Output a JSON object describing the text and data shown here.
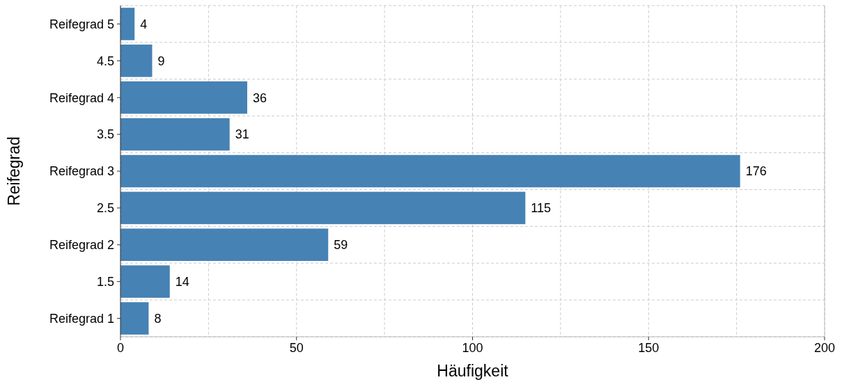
{
  "chart_data": {
    "type": "bar",
    "orientation": "horizontal",
    "xlabel": "Häufigkeit",
    "ylabel": "Reifegrad",
    "categories": [
      "Reifegrad 5",
      "4.5",
      "Reifegrad 4",
      "3.5",
      "Reifegrad 3",
      "2.5",
      "Reifegrad 2",
      "1.5",
      "Reifegrad 1"
    ],
    "values": [
      4,
      9,
      36,
      31,
      176,
      115,
      59,
      14,
      8
    ],
    "color": "#4682b4",
    "xlim": [
      0,
      200
    ],
    "xticks": [
      0,
      50,
      100,
      150,
      200
    ],
    "grid": true,
    "data_labels": true
  }
}
